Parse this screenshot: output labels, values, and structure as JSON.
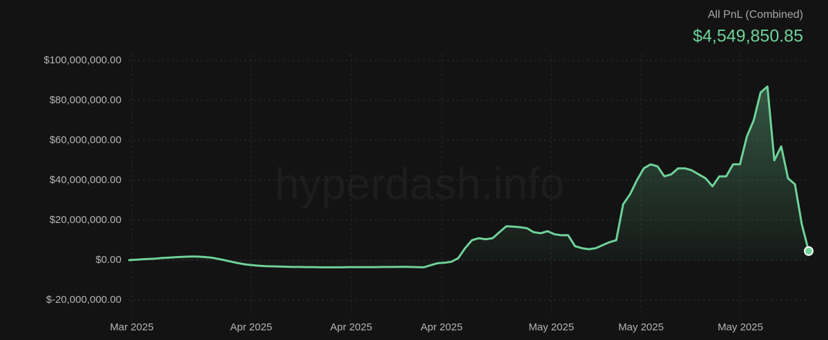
{
  "chart_data": {
    "type": "area",
    "title": "All PnL (Combined)",
    "current_value_label": "$4,549,850.85",
    "watermark": "hyperdash.info",
    "xtick_labels": [
      "Mar 2025",
      "Apr 2025",
      "Apr 2025",
      "Apr 2025",
      "May 2025",
      "May 2025",
      "May 2025"
    ],
    "color": "#6fd39a",
    "grid": true,
    "ylim": [
      -28000000,
      103000000
    ],
    "yticks": [
      {
        "value": -20000000,
        "label": "$-20,000,000.00"
      },
      {
        "value": 0,
        "label": "$0.00"
      },
      {
        "value": 20000000,
        "label": "$20,000,000.00"
      },
      {
        "value": 40000000,
        "label": "$40,000,000.00"
      },
      {
        "value": 60000000,
        "label": "$60,000,000.00"
      },
      {
        "value": 80000000,
        "label": "$80,000,000.00"
      },
      {
        "value": 100000000,
        "label": "$100,000,000.00"
      }
    ],
    "values": [
      0,
      200000,
      400000,
      600000,
      800000,
      1100000,
      1300000,
      1500000,
      1700000,
      1800000,
      1800000,
      1600000,
      1300000,
      700000,
      0,
      -800000,
      -1500000,
      -2100000,
      -2500000,
      -2800000,
      -3000000,
      -3100000,
      -3200000,
      -3300000,
      -3400000,
      -3400000,
      -3500000,
      -3500000,
      -3600000,
      -3600000,
      -3600000,
      -3600000,
      -3500000,
      -3500000,
      -3500000,
      -3500000,
      -3500000,
      -3400000,
      -3400000,
      -3400000,
      -3300000,
      -3400000,
      -3500000,
      -3600000,
      -2500000,
      -1500000,
      -1300000,
      -800000,
      1000000,
      6000000,
      10000000,
      11000000,
      10500000,
      11000000,
      14000000,
      17000000,
      16800000,
      16500000,
      16000000,
      14000000,
      13500000,
      14500000,
      13000000,
      12500000,
      12500000,
      7000000,
      6000000,
      5500000,
      6000000,
      7500000,
      9000000,
      10000000,
      28000000,
      33000000,
      40000000,
      46000000,
      48000000,
      47000000,
      42000000,
      43000000,
      46000000,
      46000000,
      45000000,
      43000000,
      41000000,
      37000000,
      42000000,
      42000000,
      48000000,
      48000000,
      62000000,
      70000000,
      84000000,
      87000000,
      50000000,
      57000000,
      41000000,
      38000000,
      18000000,
      4549850.85
    ]
  }
}
